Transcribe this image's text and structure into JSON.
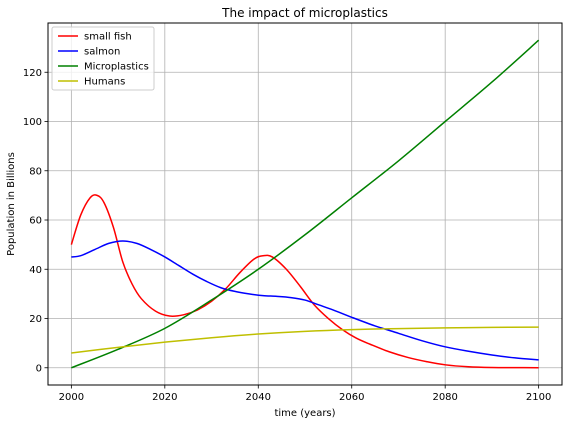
{
  "chart_data": {
    "type": "line",
    "title": "The impact of microplastics",
    "xlabel": "time (years)",
    "ylabel": "Population in Billions",
    "xlim": [
      1995,
      2105
    ],
    "ylim": [
      -7,
      140
    ],
    "xticks": [
      2000,
      2020,
      2040,
      2060,
      2080,
      2100
    ],
    "yticks": [
      0,
      20,
      40,
      60,
      80,
      100,
      120
    ],
    "grid": true,
    "legend_position": "top-left",
    "series": [
      {
        "name": "small fish",
        "color": "#ff0000",
        "x": [
          2000,
          2002,
          2004,
          2005.5,
          2007,
          2009,
          2011,
          2013,
          2015,
          2018,
          2021,
          2024,
          2027,
          2030,
          2033,
          2036,
          2039,
          2041,
          2043,
          2046,
          2049,
          2052,
          2055,
          2058,
          2061,
          2064,
          2068,
          2072,
          2076,
          2080,
          2085,
          2090,
          2095,
          2100
        ],
        "y": [
          50,
          62,
          69,
          70,
          67,
          57,
          43,
          34,
          28,
          23,
          21,
          21.5,
          23.5,
          27,
          32,
          38.5,
          44,
          45.5,
          45,
          40,
          33,
          25.5,
          20,
          15.5,
          12,
          9.5,
          6.5,
          4.2,
          2.5,
          1.2,
          0.4,
          0.1,
          0.05,
          0
        ]
      },
      {
        "name": "salmon",
        "color": "#0000ff",
        "x": [
          2000,
          2002,
          2005,
          2008,
          2011,
          2014,
          2017,
          2020,
          2023,
          2026,
          2029,
          2032,
          2035,
          2038,
          2041,
          2044,
          2047,
          2050,
          2053,
          2056,
          2060,
          2065,
          2070,
          2075,
          2080,
          2085,
          2090,
          2095,
          2100
        ],
        "y": [
          45,
          45.5,
          48,
          50.5,
          51.5,
          50.5,
          48,
          45,
          41.5,
          38,
          35,
          32.5,
          31,
          30,
          29.3,
          29,
          28.5,
          27.5,
          25.5,
          23.5,
          20.5,
          17,
          14,
          11,
          8.5,
          6.7,
          5.2,
          4,
          3.2
        ]
      },
      {
        "name": "Microplastics",
        "color": "#008000",
        "x": [
          2000,
          2010,
          2020,
          2030,
          2040,
          2050,
          2060,
          2070,
          2080,
          2090,
          2100
        ],
        "y": [
          0,
          7.5,
          16,
          27.5,
          40,
          54,
          69,
          84,
          100,
          116,
          133
        ]
      },
      {
        "name": "Humans",
        "color": "#bfbf00",
        "x": [
          2000,
          2010,
          2020,
          2030,
          2040,
          2050,
          2060,
          2070,
          2080,
          2090,
          2100
        ],
        "y": [
          6,
          8.3,
          10.4,
          12.2,
          13.7,
          14.8,
          15.5,
          15.9,
          16.2,
          16.4,
          16.5
        ]
      }
    ]
  }
}
